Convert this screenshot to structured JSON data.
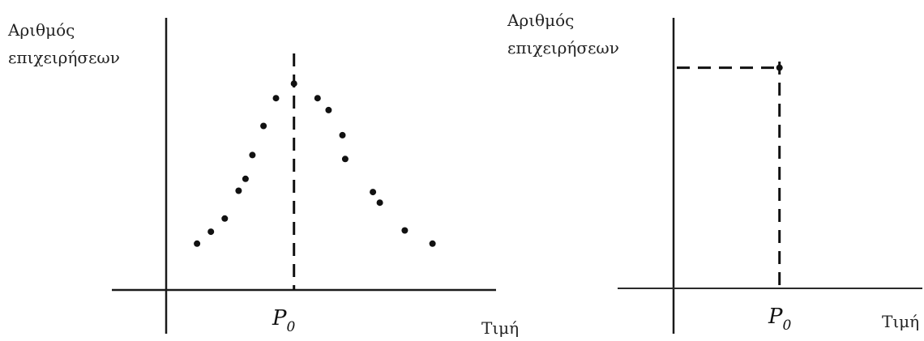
{
  "chart_data": [
    {
      "type": "scatter",
      "ylabel_line1": "Αριθμός",
      "ylabel_line2": "επιχειρήσεων",
      "xlabel": "Τιμή",
      "reference": {
        "symbol": "P",
        "subscript": "0",
        "x": 0
      },
      "xlim": [
        -8,
        10.2
      ],
      "ylim": [
        0,
        18
      ],
      "points": [
        {
          "x": -7.0,
          "y": 3.5
        },
        {
          "x": -6.0,
          "y": 4.4
        },
        {
          "x": -5.0,
          "y": 5.4
        },
        {
          "x": -4.0,
          "y": 7.5
        },
        {
          "x": -3.5,
          "y": 8.4
        },
        {
          "x": -3.0,
          "y": 10.2
        },
        {
          "x": -2.2,
          "y": 12.4
        },
        {
          "x": -1.3,
          "y": 14.5
        },
        {
          "x": 0.0,
          "y": 15.6
        },
        {
          "x": 1.7,
          "y": 14.5
        },
        {
          "x": 2.5,
          "y": 13.6
        },
        {
          "x": 3.5,
          "y": 11.7
        },
        {
          "x": 3.7,
          "y": 9.9
        },
        {
          "x": 5.7,
          "y": 7.4
        },
        {
          "x": 6.2,
          "y": 6.6
        },
        {
          "x": 8.0,
          "y": 4.5
        },
        {
          "x": 10.0,
          "y": 3.5
        }
      ]
    },
    {
      "type": "scatter",
      "ylabel_line1": "Αριθμός",
      "ylabel_line2": "επιχειρήσεων",
      "xlabel": "Τιμή",
      "reference": {
        "symbol": "P",
        "subscript": "0",
        "x": 0
      },
      "xlim": [
        -7.0,
        9.5
      ],
      "ylim": [
        0,
        16.5
      ],
      "points": [
        {
          "x": 0.0,
          "y": 15.5
        }
      ]
    }
  ]
}
